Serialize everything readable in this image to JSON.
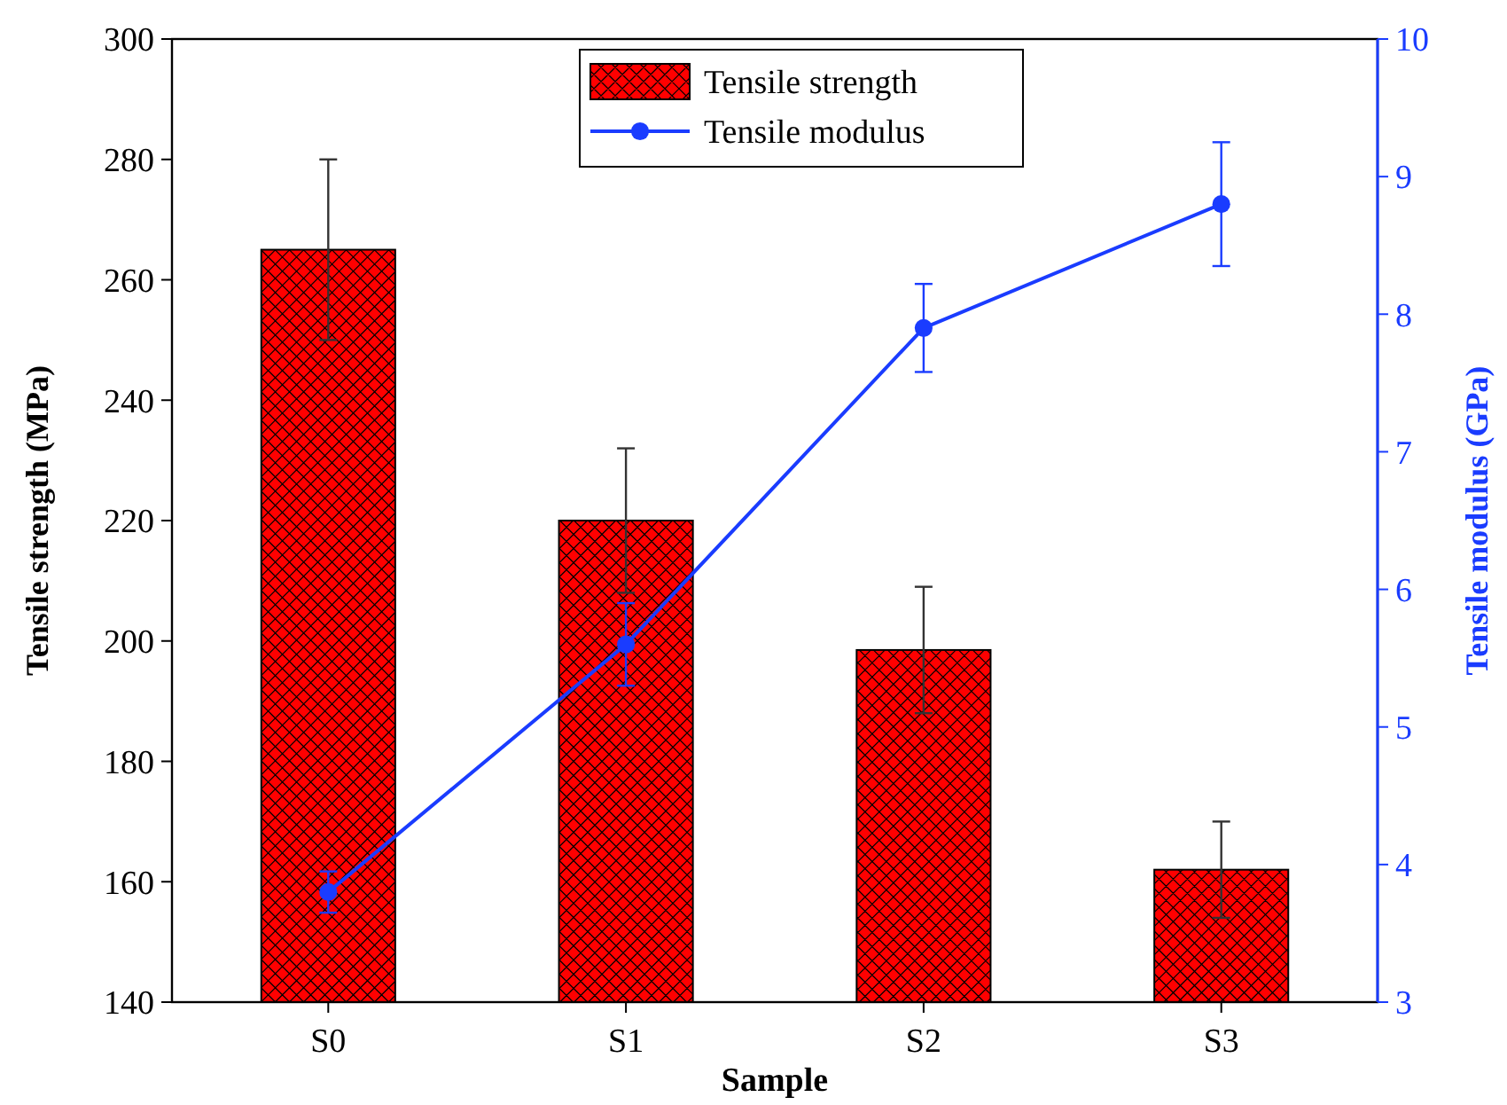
{
  "chart_data": {
    "type": "bar",
    "xlabel": "Sample",
    "ylabel": "Tensile strength (MPa)",
    "y2label": "Tensile modulus (GPa)",
    "categories": [
      "S0",
      "S1",
      "S2",
      "S3"
    ],
    "series": [
      {
        "name": "Tensile strength",
        "color": "#ff0000",
        "values": [
          265,
          220,
          198.5,
          162
        ],
        "errors": [
          15,
          12,
          10.5,
          8
        ]
      },
      {
        "name": "Tensile modulus",
        "type": "line",
        "axis": "y2",
        "color": "#1a3cff",
        "values": [
          3.8,
          5.6,
          7.9,
          8.8
        ],
        "errors": [
          0.15,
          0.3,
          0.32,
          0.45
        ]
      }
    ],
    "ylim": [
      140,
      300
    ],
    "yticks": [
      140,
      160,
      180,
      200,
      220,
      240,
      260,
      280,
      300
    ],
    "y2lim": [
      3,
      10
    ],
    "y2ticks": [
      3,
      4,
      5,
      6,
      7,
      8,
      9,
      10
    ],
    "legend": "top",
    "marker": "circle",
    "line_style": "solid",
    "grid": false
  }
}
